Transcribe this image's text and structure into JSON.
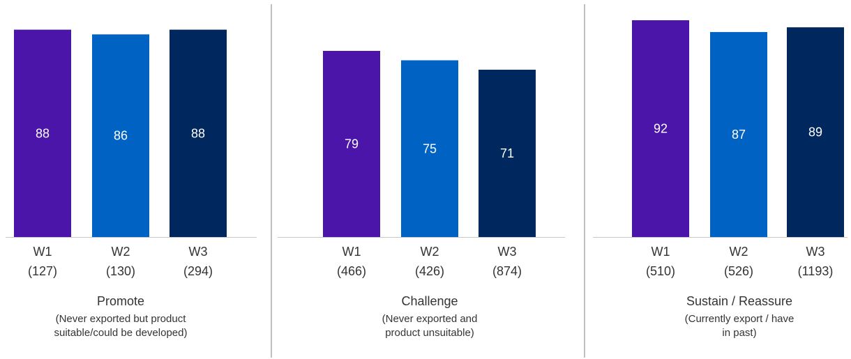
{
  "chart_data": {
    "type": "bar",
    "ylim": [
      0,
      100
    ],
    "colors": {
      "W1": "#4a15a8",
      "W2": "#0063c4",
      "W3": "#00285e",
      "axis": "#c8c8c8",
      "separator": "#7f7f7f",
      "value_text": "#ffffff",
      "label_text": "#333333"
    },
    "groups": [
      {
        "title": "Promote",
        "subtitle_lines": [
          "(Never exported but product",
          "suitable/could be developed)"
        ],
        "bars": [
          {
            "label": "W1",
            "n": "(127)",
            "value": 88,
            "value_label": "88"
          },
          {
            "label": "W2",
            "n": "(130)",
            "value": 86,
            "value_label": "86"
          },
          {
            "label": "W3",
            "n": "(294)",
            "value": 88,
            "value_label": "88"
          }
        ]
      },
      {
        "title": "Challenge",
        "subtitle_lines": [
          "(Never exported and",
          "product unsuitable)"
        ],
        "bars": [
          {
            "label": "W1",
            "n": "(466)",
            "value": 79,
            "value_label": "79"
          },
          {
            "label": "W2",
            "n": "(426)",
            "value": 75,
            "value_label": "75"
          },
          {
            "label": "W3",
            "n": "(874)",
            "value": 71,
            "value_label": "71"
          }
        ]
      },
      {
        "title": "Sustain / Reassure",
        "subtitle_lines": [
          "(Currently export / have",
          "in past)"
        ],
        "bars": [
          {
            "label": "W1",
            "n": "(510)",
            "value": 92,
            "value_label": "92"
          },
          {
            "label": "W2",
            "n": "(526)",
            "value": 87,
            "value_label": "87"
          },
          {
            "label": "W3",
            "n": "(1193)",
            "value": 89,
            "value_label": "89"
          }
        ]
      }
    ]
  }
}
